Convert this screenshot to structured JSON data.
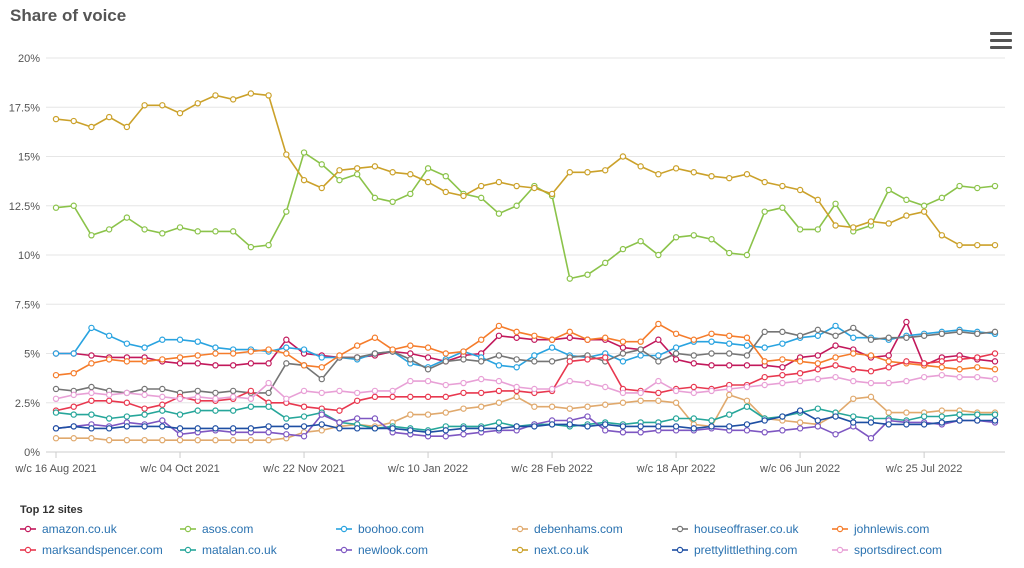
{
  "title": "Share of voice",
  "chart_data": {
    "type": "line",
    "title": "Share of voice",
    "ylim": [
      0,
      20
    ],
    "yticks": [
      "0%",
      "2.5%",
      "5%",
      "7.5%",
      "10%",
      "12.5%",
      "15%",
      "17.5%",
      "20%"
    ],
    "ytick_values": [
      0,
      2.5,
      5,
      7.5,
      10,
      12.5,
      15,
      17.5,
      20
    ],
    "xtick_labels": [
      "w/c 16 Aug 2021",
      "w/c 04 Oct 2021",
      "w/c 22 Nov 2021",
      "w/c 10 Jan 2022",
      "w/c 28 Feb 2022",
      "w/c 18 Apr 2022",
      "w/c 06 Jun 2022",
      "w/c 25 Jul 2022"
    ],
    "xtick_index": [
      0,
      7,
      14,
      21,
      28,
      35,
      42,
      49
    ],
    "legend_title": "Top 12 sites",
    "legend_position": "bottom",
    "series": [
      {
        "name": "amazon.co.uk",
        "color": "#c2185b",
        "values": [
          5.0,
          5.0,
          4.9,
          4.8,
          4.8,
          4.8,
          4.6,
          4.5,
          4.5,
          4.4,
          4.4,
          4.5,
          4.5,
          5.7,
          5.0,
          4.9,
          4.8,
          4.8,
          4.9,
          5.1,
          5.0,
          4.8,
          4.6,
          4.9,
          5.0,
          5.9,
          5.8,
          5.7,
          5.7,
          5.8,
          5.7,
          5.7,
          5.3,
          5.2,
          5.7,
          4.7,
          4.5,
          4.4,
          4.4,
          4.4,
          4.4,
          4.3,
          4.8,
          4.9,
          5.4,
          5.2,
          4.8,
          4.9,
          6.6,
          4.4,
          4.8,
          4.9,
          4.7,
          4.6
        ]
      },
      {
        "name": "asos.com",
        "color": "#8bc34a",
        "values": [
          12.4,
          12.5,
          11.0,
          11.3,
          11.9,
          11.3,
          11.1,
          11.4,
          11.2,
          11.2,
          11.2,
          10.4,
          10.5,
          12.2,
          15.2,
          14.6,
          13.8,
          14.1,
          12.9,
          12.7,
          13.1,
          14.4,
          14.0,
          13.1,
          12.9,
          12.1,
          12.5,
          13.5,
          13.0,
          8.8,
          9.0,
          9.6,
          10.3,
          10.7,
          10.0,
          10.9,
          11.0,
          10.8,
          10.1,
          10.0,
          12.2,
          12.4,
          11.3,
          11.3,
          12.6,
          11.2,
          11.5,
          13.3,
          12.8,
          12.5,
          12.9,
          13.5,
          13.4,
          13.5
        ]
      },
      {
        "name": "boohoo.com",
        "color": "#29a3e0",
        "values": [
          5.0,
          5.0,
          6.3,
          5.9,
          5.5,
          5.3,
          5.7,
          5.7,
          5.6,
          5.3,
          5.2,
          5.2,
          5.1,
          5.3,
          5.2,
          4.8,
          4.8,
          4.7,
          5.0,
          5.1,
          4.5,
          4.3,
          4.7,
          5.1,
          4.8,
          4.4,
          4.3,
          4.9,
          5.3,
          4.9,
          4.8,
          5.0,
          4.6,
          4.9,
          4.9,
          5.3,
          5.6,
          5.6,
          5.5,
          5.4,
          5.3,
          5.5,
          5.8,
          5.9,
          6.4,
          5.8,
          5.8,
          5.7,
          5.9,
          6.0,
          6.1,
          6.2,
          6.1,
          6.0
        ]
      },
      {
        "name": "debenhams.com",
        "color": "#e0a96d",
        "values": [
          0.7,
          0.7,
          0.7,
          0.6,
          0.6,
          0.6,
          0.6,
          0.6,
          0.6,
          0.6,
          0.6,
          0.6,
          0.6,
          0.7,
          1.0,
          1.1,
          1.3,
          1.4,
          1.3,
          1.5,
          1.9,
          1.9,
          2.0,
          2.2,
          2.3,
          2.5,
          2.8,
          2.3,
          2.3,
          2.2,
          2.3,
          2.4,
          2.5,
          2.6,
          2.6,
          2.5,
          1.4,
          1.3,
          2.9,
          2.6,
          1.7,
          1.6,
          1.5,
          1.4,
          1.9,
          2.7,
          2.8,
          2.0,
          2.0,
          2.0,
          2.1,
          2.1,
          2.0,
          2.0
        ]
      },
      {
        "name": "houseoffraser.co.uk",
        "color": "#757575",
        "values": [
          3.2,
          3.1,
          3.3,
          3.1,
          3.0,
          3.2,
          3.2,
          3.0,
          3.1,
          3.0,
          3.1,
          3.0,
          3.0,
          4.5,
          4.4,
          3.7,
          4.8,
          4.8,
          5.0,
          5.1,
          4.7,
          4.2,
          4.6,
          4.7,
          4.6,
          4.9,
          4.7,
          4.6,
          4.6,
          4.8,
          4.9,
          4.6,
          5.0,
          5.2,
          4.6,
          5.0,
          4.9,
          5.0,
          5.0,
          4.9,
          6.1,
          6.1,
          5.9,
          6.2,
          5.9,
          6.3,
          5.7,
          5.8,
          5.8,
          5.9,
          6.0,
          6.1,
          6.0,
          6.1
        ]
      },
      {
        "name": "johnlewis.com",
        "color": "#f57c2b",
        "values": [
          3.9,
          4.0,
          4.5,
          4.7,
          4.6,
          4.6,
          4.7,
          4.8,
          4.9,
          5.0,
          5.0,
          5.1,
          5.2,
          5.0,
          4.4,
          4.3,
          4.9,
          5.4,
          5.8,
          5.2,
          5.4,
          5.3,
          5.0,
          5.1,
          5.7,
          6.4,
          6.1,
          5.9,
          5.7,
          6.1,
          5.7,
          5.8,
          5.6,
          5.6,
          6.5,
          6.0,
          5.7,
          6.0,
          5.9,
          5.8,
          4.6,
          4.7,
          4.6,
          4.5,
          4.8,
          5.0,
          4.9,
          4.6,
          4.5,
          4.4,
          4.3,
          4.2,
          4.3,
          4.2
        ]
      },
      {
        "name": "marksandspencer.com",
        "color": "#e8384f",
        "values": [
          2.1,
          2.3,
          2.6,
          2.6,
          2.5,
          2.2,
          2.4,
          2.8,
          2.6,
          2.6,
          2.7,
          3.1,
          2.5,
          2.5,
          2.3,
          2.2,
          2.1,
          2.6,
          2.8,
          2.8,
          2.8,
          2.8,
          2.8,
          3.0,
          3.0,
          3.1,
          3.1,
          3.0,
          3.1,
          4.6,
          4.7,
          4.8,
          3.2,
          3.1,
          3.0,
          3.2,
          3.3,
          3.2,
          3.4,
          3.4,
          3.8,
          3.9,
          4.0,
          4.2,
          4.4,
          4.2,
          4.1,
          4.3,
          4.6,
          4.5,
          4.6,
          4.7,
          4.8,
          5.0
        ]
      },
      {
        "name": "matalan.co.uk",
        "color": "#26a69a",
        "values": [
          2.0,
          1.9,
          1.9,
          1.7,
          1.8,
          1.9,
          2.1,
          1.9,
          2.1,
          2.1,
          2.1,
          2.3,
          2.3,
          1.7,
          1.8,
          2.0,
          1.5,
          1.4,
          1.2,
          1.3,
          1.2,
          1.1,
          1.3,
          1.3,
          1.3,
          1.5,
          1.3,
          1.4,
          1.4,
          1.3,
          1.4,
          1.5,
          1.4,
          1.5,
          1.5,
          1.7,
          1.7,
          1.6,
          1.9,
          2.3,
          1.7,
          1.8,
          2.0,
          2.2,
          2.0,
          1.8,
          1.7,
          1.7,
          1.6,
          1.8,
          1.8,
          1.9,
          1.9,
          1.9
        ]
      },
      {
        "name": "newlook.com",
        "color": "#7e57c2",
        "values": [
          1.2,
          1.3,
          1.4,
          1.3,
          1.5,
          1.4,
          1.6,
          0.9,
          1.0,
          1.1,
          1.0,
          1.0,
          1.0,
          0.9,
          0.8,
          1.9,
          1.5,
          1.7,
          1.7,
          1.0,
          0.9,
          0.8,
          0.8,
          0.9,
          1.0,
          1.1,
          1.1,
          1.4,
          1.6,
          1.6,
          1.8,
          1.1,
          1.0,
          1.0,
          1.1,
          1.1,
          1.1,
          1.2,
          1.1,
          1.1,
          1.0,
          1.1,
          1.2,
          1.3,
          0.9,
          1.3,
          0.7,
          1.6,
          1.5,
          1.5,
          1.4,
          1.6,
          1.6,
          1.5
        ]
      },
      {
        "name": "next.co.uk",
        "color": "#cba12a",
        "values": [
          16.9,
          16.8,
          16.5,
          17.0,
          16.5,
          17.6,
          17.6,
          17.2,
          17.7,
          18.1,
          17.9,
          18.2,
          18.1,
          15.1,
          13.8,
          13.4,
          14.3,
          14.4,
          14.5,
          14.2,
          14.1,
          13.7,
          13.2,
          13.0,
          13.5,
          13.7,
          13.5,
          13.4,
          13.1,
          14.2,
          14.2,
          14.3,
          15.0,
          14.5,
          14.1,
          14.4,
          14.2,
          14.0,
          13.9,
          14.1,
          13.7,
          13.5,
          13.3,
          12.8,
          11.5,
          11.4,
          11.7,
          11.6,
          12.0,
          12.2,
          11.0,
          10.5,
          10.5,
          10.5
        ]
      },
      {
        "name": "prettylittlething.com",
        "color": "#1e4fa3",
        "values": [
          1.2,
          1.3,
          1.2,
          1.2,
          1.3,
          1.3,
          1.3,
          1.2,
          1.2,
          1.2,
          1.2,
          1.2,
          1.3,
          1.3,
          1.3,
          1.4,
          1.2,
          1.2,
          1.2,
          1.2,
          1.1,
          1.0,
          1.1,
          1.2,
          1.2,
          1.2,
          1.3,
          1.3,
          1.4,
          1.4,
          1.3,
          1.4,
          1.3,
          1.3,
          1.3,
          1.3,
          1.2,
          1.3,
          1.3,
          1.4,
          1.6,
          1.8,
          2.1,
          1.6,
          1.8,
          1.5,
          1.5,
          1.4,
          1.4,
          1.4,
          1.5,
          1.6,
          1.6,
          1.6
        ]
      },
      {
        "name": "sportsdirect.com",
        "color": "#e8a0d6",
        "values": [
          2.7,
          2.9,
          3.0,
          2.9,
          3.0,
          2.9,
          2.8,
          2.7,
          2.8,
          2.7,
          2.8,
          2.7,
          3.5,
          2.7,
          3.1,
          3.0,
          3.1,
          3.0,
          3.1,
          3.1,
          3.6,
          3.6,
          3.4,
          3.5,
          3.7,
          3.6,
          3.3,
          3.2,
          3.2,
          3.6,
          3.5,
          3.3,
          3.0,
          3.0,
          3.6,
          3.1,
          3.0,
          3.1,
          3.2,
          3.3,
          3.4,
          3.5,
          3.6,
          3.7,
          3.8,
          3.6,
          3.5,
          3.5,
          3.6,
          3.8,
          3.9,
          3.8,
          3.8,
          3.7
        ]
      }
    ]
  }
}
